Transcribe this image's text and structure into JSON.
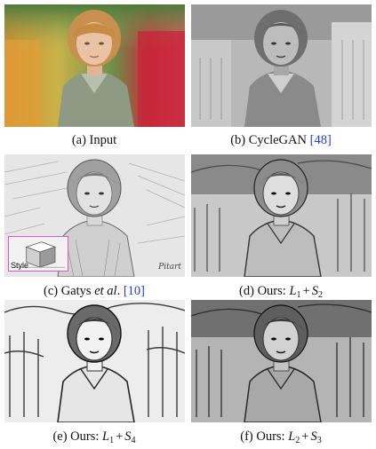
{
  "figure": {
    "panels": [
      {
        "id": "a",
        "caption_text": "(a) Input",
        "style": "color photo"
      },
      {
        "id": "b",
        "caption_prefix": "(b) CycleGAN ",
        "citation": "[48]",
        "style": "grayscale"
      },
      {
        "id": "c",
        "caption_prefix": "(c) Gatys ",
        "caption_italic": "et al",
        "caption_mid": ". ",
        "citation": "[10]",
        "style": "pencil sketch",
        "inset_label": "Style",
        "signature": "Pitart"
      },
      {
        "id": "d",
        "caption_prefix": "(d) Ours: ",
        "l_var": "L",
        "l_sub": "1",
        "op": "+",
        "s_var": "S",
        "s_sub": "2",
        "style": "sketch"
      },
      {
        "id": "e",
        "caption_prefix": "(e) Ours: ",
        "l_var": "L",
        "l_sub": "1",
        "op": "+",
        "s_var": "S",
        "s_sub": "4",
        "style": "sketch high contrast"
      },
      {
        "id": "f",
        "caption_prefix": "(f) Ours: ",
        "l_var": "L",
        "l_sub": "2",
        "op": "+",
        "s_var": "S",
        "s_sub": "3",
        "style": "sketch dark"
      }
    ],
    "colors": {
      "citation": "#1f3ec9",
      "inset_border": "#e055c8"
    }
  }
}
